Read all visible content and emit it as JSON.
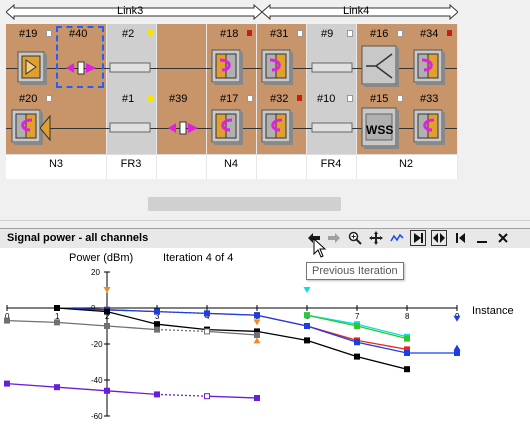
{
  "links": [
    {
      "label": "Link3"
    },
    {
      "label": "Link4"
    }
  ],
  "top_row_nodes": [
    "#19",
    "#40",
    "#2",
    "#18",
    "#31",
    "#9",
    "#16",
    "#34"
  ],
  "bottom_row_nodes": [
    "#20",
    "#1",
    "#39",
    "#17",
    "#32",
    "#10",
    "#15",
    "#33"
  ],
  "sections": [
    "N3",
    "FR3",
    "N4",
    "FR4",
    "N2"
  ],
  "wss_label": "WSS",
  "panel": {
    "title": "Signal power - all channels",
    "toolbar": {
      "prev": "prev-iteration",
      "next": "next-iteration",
      "zoom": "zoom",
      "pan": "pan",
      "toggle_line": "line-style",
      "play": "play-forward",
      "step": "step",
      "back": "step-back",
      "minimize": "minimize",
      "close": "close"
    },
    "tooltip": "Previous Iteration",
    "iteration_text": "Iteration 4 of 4"
  },
  "colors": {
    "brown": "#c8956a",
    "grey_section": "#cfcfcf",
    "red": "#e8261c",
    "blue": "#1a3fe6",
    "black": "#000000",
    "gray": "#707070",
    "purple": "#6b1ed8",
    "cyan": "#00e0e8",
    "green": "#30c830",
    "orange": "#f08a24"
  },
  "chart_data": {
    "type": "line",
    "xlabel": "Instance",
    "ylabel": "Power (dBm)",
    "xlim": [
      0,
      9
    ],
    "ylim": [
      -60,
      20
    ],
    "xticks": [
      "0",
      "1",
      "2",
      "3",
      "4",
      "5",
      "6",
      "7",
      "8",
      "9"
    ],
    "yticks": [
      "20",
      "0",
      "-20",
      "-40",
      "-60"
    ],
    "series": [
      {
        "color": "red",
        "x": [
          1,
          2,
          3,
          4,
          5,
          6,
          7,
          8
        ],
        "y": [
          0,
          -1,
          -2,
          -3,
          -4,
          -10,
          -18,
          -23
        ],
        "dashed_from": 3,
        "dashed_to": 4
      },
      {
        "color": "blue",
        "x": [
          1,
          2,
          3,
          4,
          5,
          6,
          7,
          8,
          9
        ],
        "y": [
          0,
          -1,
          -2,
          -3,
          -4,
          -10,
          -19,
          -25,
          -25
        ]
      },
      {
        "color": "black",
        "x": [
          1,
          2,
          3,
          4,
          5,
          6,
          7,
          8
        ],
        "y": [
          0,
          -2,
          -9,
          -12,
          -13,
          -18,
          -27,
          -34
        ]
      },
      {
        "color": "gray",
        "x": [
          0,
          1,
          2,
          3,
          4,
          5
        ],
        "y": [
          -7,
          -8,
          -10,
          -12,
          -13,
          -15
        ],
        "dashed_from": 3,
        "dashed_to": 4
      },
      {
        "color": "purple",
        "x": [
          0,
          1,
          2,
          3,
          4,
          5
        ],
        "y": [
          -42,
          -44,
          -46,
          -48,
          -49,
          -50
        ],
        "dashed_from": 3,
        "dashed_to": 4
      },
      {
        "color": "cyan",
        "x": [
          6,
          7,
          8
        ],
        "y": [
          -4,
          -9,
          -16
        ]
      },
      {
        "color": "green",
        "x": [
          6,
          7,
          8
        ],
        "y": [
          -4,
          -10,
          -17
        ]
      }
    ],
    "markers": [
      {
        "shape": "triangle-down",
        "color": "orange",
        "x": 2,
        "y": 10
      },
      {
        "shape": "triangle-down",
        "color": "orange",
        "x": 5,
        "y": -8
      },
      {
        "shape": "triangle-up",
        "color": "orange",
        "x": 5,
        "y": -18
      },
      {
        "shape": "triangle-down",
        "color": "cyan",
        "x": 6,
        "y": 10
      },
      {
        "shape": "triangle-down",
        "color": "blue",
        "x": 9,
        "y": -6
      },
      {
        "shape": "triangle-up",
        "color": "blue",
        "x": 9,
        "y": -22
      }
    ]
  }
}
